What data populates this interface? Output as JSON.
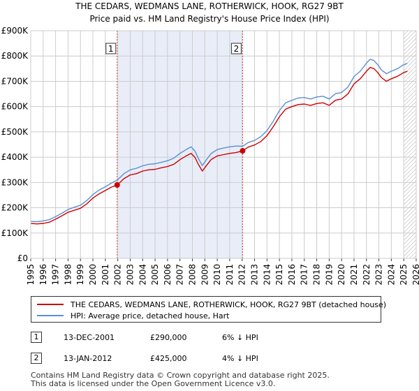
{
  "chart_data": {
    "type": "line",
    "title": "THE CEDARS, WEDMANS LANE, ROTHERWICK, HOOK, RG27 9BT",
    "subtitle": "Price paid vs. HM Land Registry's House Price Index (HPI)",
    "xlim": [
      1995,
      2026
    ],
    "ylim": [
      0,
      900000
    ],
    "x_ticks": [
      "1995",
      "1996",
      "1997",
      "1998",
      "1999",
      "2000",
      "2001",
      "2002",
      "2003",
      "2004",
      "2005",
      "2006",
      "2007",
      "2008",
      "2009",
      "2010",
      "2011",
      "2012",
      "2013",
      "2014",
      "2015",
      "2016",
      "2017",
      "2018",
      "2019",
      "2020",
      "2021",
      "2022",
      "2023",
      "2024",
      "2025",
      "2026"
    ],
    "y_ticks": [
      {
        "value": 0,
        "label": "£0"
      },
      {
        "value": 100000,
        "label": "£100K"
      },
      {
        "value": 200000,
        "label": "£200K"
      },
      {
        "value": 300000,
        "label": "£300K"
      },
      {
        "value": 400000,
        "label": "£400K"
      },
      {
        "value": 500000,
        "label": "£500K"
      },
      {
        "value": 600000,
        "label": "£600K"
      },
      {
        "value": 700000,
        "label": "£700K"
      },
      {
        "value": 800000,
        "label": "£800K"
      },
      {
        "value": 900000,
        "label": "£900K"
      }
    ],
    "shaded_region": [
      2001.95,
      2012.04
    ],
    "forecast_hatch_from": 2025.0,
    "series": [
      {
        "name": "THE CEDARS, WEDMANS LANE, ROTHERWICK, HOOK, RG27 9BT (detached house)",
        "color": "#cc0000",
        "x": [
          1995.0,
          1995.5,
          1996.0,
          1996.5,
          1997.0,
          1997.5,
          1998.0,
          1998.5,
          1999.0,
          1999.5,
          2000.0,
          2000.5,
          2001.0,
          2001.5,
          2001.95,
          2002.5,
          2003.0,
          2003.5,
          2004.0,
          2004.5,
          2005.0,
          2005.5,
          2006.0,
          2006.5,
          2007.0,
          2007.5,
          2007.9,
          2008.2,
          2008.5,
          2008.8,
          2009.1,
          2009.5,
          2010.0,
          2010.5,
          2011.0,
          2011.5,
          2012.04,
          2012.5,
          2013.0,
          2013.5,
          2014.0,
          2014.5,
          2015.0,
          2015.5,
          2016.0,
          2016.5,
          2017.0,
          2017.5,
          2018.0,
          2018.5,
          2019.0,
          2019.5,
          2020.0,
          2020.5,
          2021.0,
          2021.5,
          2022.0,
          2022.3,
          2022.6,
          2022.9,
          2023.2,
          2023.6,
          2024.0,
          2024.5,
          2025.0,
          2025.3
        ],
        "values": [
          138000,
          136000,
          138000,
          143000,
          155000,
          168000,
          182000,
          190000,
          198000,
          215000,
          238000,
          255000,
          268000,
          282000,
          290000,
          315000,
          330000,
          335000,
          345000,
          350000,
          352000,
          358000,
          363000,
          372000,
          390000,
          405000,
          415000,
          400000,
          370000,
          345000,
          365000,
          390000,
          405000,
          410000,
          415000,
          418000,
          425000,
          440000,
          448000,
          462000,
          485000,
          520000,
          560000,
          590000,
          600000,
          608000,
          610000,
          605000,
          612000,
          615000,
          605000,
          625000,
          630000,
          650000,
          690000,
          710000,
          740000,
          755000,
          750000,
          735000,
          715000,
          700000,
          710000,
          720000,
          735000,
          740000
        ]
      },
      {
        "name": "HPI: Average price, detached house, Hart",
        "color": "#5b8fd0",
        "x": [
          1995.0,
          1995.5,
          1996.0,
          1996.5,
          1997.0,
          1997.5,
          1998.0,
          1998.5,
          1999.0,
          1999.5,
          2000.0,
          2000.5,
          2001.0,
          2001.5,
          2001.95,
          2002.5,
          2003.0,
          2003.5,
          2004.0,
          2004.5,
          2005.0,
          2005.5,
          2006.0,
          2006.5,
          2007.0,
          2007.5,
          2007.9,
          2008.2,
          2008.5,
          2008.8,
          2009.1,
          2009.5,
          2010.0,
          2010.5,
          2011.0,
          2011.5,
          2012.04,
          2012.5,
          2013.0,
          2013.5,
          2014.0,
          2014.5,
          2015.0,
          2015.5,
          2016.0,
          2016.5,
          2017.0,
          2017.5,
          2018.0,
          2018.5,
          2019.0,
          2019.5,
          2020.0,
          2020.5,
          2021.0,
          2021.5,
          2022.0,
          2022.3,
          2022.6,
          2022.9,
          2023.2,
          2023.6,
          2024.0,
          2024.5,
          2025.0,
          2025.3
        ],
        "values": [
          146000,
          145000,
          148000,
          153000,
          165000,
          178000,
          193000,
          202000,
          210000,
          228000,
          252000,
          270000,
          283000,
          298000,
          309000,
          335000,
          350000,
          356000,
          366000,
          372000,
          374000,
          380000,
          386000,
          396000,
          415000,
          430000,
          441000,
          425000,
          393000,
          367000,
          388000,
          414000,
          430000,
          436000,
          441000,
          444000,
          443000,
          458000,
          466000,
          481000,
          505000,
          542000,
          584000,
          615000,
          625000,
          634000,
          636000,
          630000,
          638000,
          641000,
          630000,
          651000,
          656000,
          677000,
          719000,
          740000,
          772000,
          787000,
          782000,
          766000,
          745000,
          730000,
          740000,
          750000,
          766000,
          771000
        ]
      }
    ],
    "markers": [
      {
        "label": "1",
        "x": 2001.95,
        "y": 290000
      },
      {
        "label": "2",
        "x": 2012.04,
        "y": 425000
      }
    ]
  },
  "legend": {
    "series1_label": "THE CEDARS, WEDMANS LANE, ROTHERWICK, HOOK, RG27 9BT (detached house)",
    "series2_label": "HPI: Average price, detached house, Hart"
  },
  "annotations": [
    {
      "num": "1",
      "date": "13-DEC-2001",
      "price": "£290,000",
      "hpi": "6% ↓ HPI"
    },
    {
      "num": "2",
      "date": "13-JAN-2012",
      "price": "£425,000",
      "hpi": "4% ↓ HPI"
    }
  ],
  "footer": {
    "line1": "Contains HM Land Registry data © Crown copyright and database right 2025.",
    "line2": "This data is licensed under the Open Government Licence v3.0."
  }
}
